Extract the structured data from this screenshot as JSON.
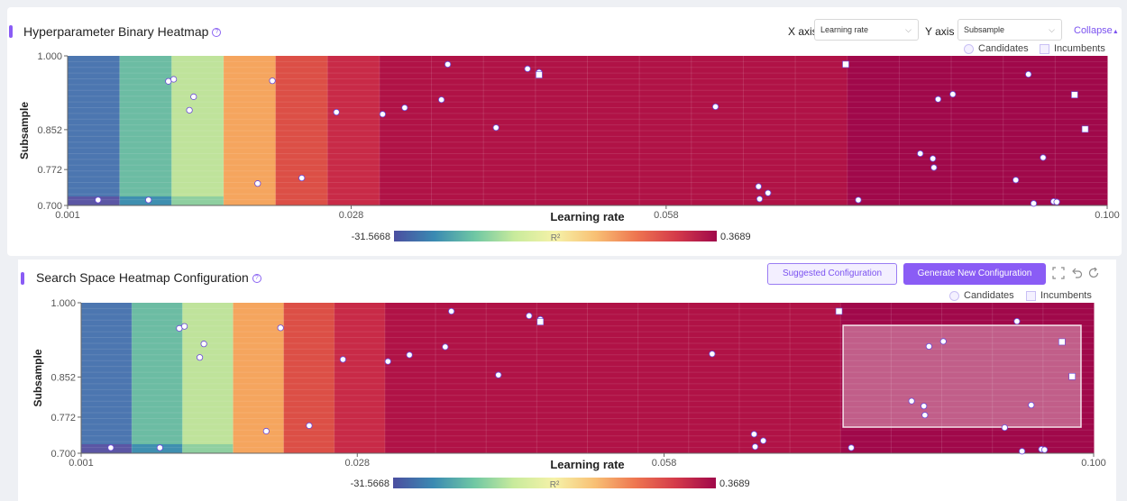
{
  "colors": {
    "accent": "#8a5cf5",
    "bands": [
      "#4c76b0",
      "#6cbca3",
      "#bfe39b",
      "#f5a55e",
      "#dc4f46",
      "#c82a47",
      "#b01246",
      "#a0084a"
    ]
  },
  "panel1": {
    "title": "Hyperparameter Binary Heatmap",
    "x_axis_label": "X axis",
    "x_axis_value": "Learning rate",
    "y_axis_label": "Y axis",
    "y_axis_value": "Subsample",
    "collapse_label": "Collapse",
    "legend": {
      "candidates": "Candidates",
      "incumbents": "Incumbents"
    }
  },
  "panel2": {
    "title": "Search Space Heatmap Configuration",
    "suggested_button": "Suggested Configuration",
    "generate_button": "Generate New Configuration",
    "legend": {
      "candidates": "Candidates",
      "incumbents": "Incumbents"
    }
  },
  "chart_data": [
    {
      "type": "heatmap",
      "title": "Hyperparameter Binary Heatmap",
      "xlabel": "Learning rate",
      "ylabel": "Subsample",
      "xlim": [
        0.001,
        0.1
      ],
      "ylim": [
        0.7,
        1.0
      ],
      "x_ticks": [
        "0.001",
        "0.028",
        "0.058",
        "0.100"
      ],
      "y_ticks": [
        "1.000",
        "0.852",
        "0.772",
        "0.700"
      ],
      "colorbar": {
        "min": "-31.5668",
        "max": "0.3689",
        "label": "R²"
      },
      "candidates": [
        [
          0.0039,
          0.711
        ],
        [
          0.0087,
          0.711
        ],
        [
          0.0106,
          0.949
        ],
        [
          0.0111,
          0.953
        ],
        [
          0.0126,
          0.891
        ],
        [
          0.013,
          0.918
        ],
        [
          0.0191,
          0.744
        ],
        [
          0.0205,
          0.95
        ],
        [
          0.0233,
          0.755
        ],
        [
          0.0266,
          0.887
        ],
        [
          0.031,
          0.883
        ],
        [
          0.0331,
          0.896
        ],
        [
          0.0366,
          0.912
        ],
        [
          0.0372,
          0.983
        ],
        [
          0.0418,
          0.856
        ],
        [
          0.0448,
          0.974
        ],
        [
          0.0459,
          0.967
        ],
        [
          0.0627,
          0.898
        ],
        [
          0.0668,
          0.738
        ],
        [
          0.0669,
          0.713
        ],
        [
          0.0677,
          0.725
        ],
        [
          0.0763,
          0.711
        ],
        [
          0.0822,
          0.804
        ],
        [
          0.0834,
          0.794
        ],
        [
          0.0835,
          0.776
        ],
        [
          0.0839,
          0.913
        ],
        [
          0.0853,
          0.923
        ],
        [
          0.0913,
          0.751
        ],
        [
          0.0925,
          0.963
        ],
        [
          0.0939,
          0.796
        ],
        [
          0.093,
          0.704
        ],
        [
          0.0949,
          0.708
        ],
        [
          0.0952,
          0.707
        ]
      ],
      "incumbents": [
        [
          0.0459,
          0.962
        ],
        [
          0.0751,
          0.983
        ],
        [
          0.0969,
          0.922
        ],
        [
          0.0979,
          0.853
        ]
      ]
    },
    {
      "type": "heatmap",
      "title": "Search Space Heatmap Configuration",
      "xlabel": "Learning rate",
      "ylabel": "Subsample",
      "xlim": [
        0.001,
        0.1
      ],
      "ylim": [
        0.7,
        1.0
      ],
      "x_ticks": [
        "0.001",
        "0.028",
        "0.058",
        "0.100"
      ],
      "y_ticks": [
        "1.000",
        "0.852",
        "0.772",
        "0.700"
      ],
      "colorbar": {
        "min": "-31.5668",
        "max": "0.3689",
        "label": "R²"
      },
      "candidates": [
        [
          0.0039,
          0.711
        ],
        [
          0.0087,
          0.711
        ],
        [
          0.0106,
          0.949
        ],
        [
          0.0111,
          0.953
        ],
        [
          0.0126,
          0.891
        ],
        [
          0.013,
          0.918
        ],
        [
          0.0191,
          0.744
        ],
        [
          0.0205,
          0.95
        ],
        [
          0.0233,
          0.755
        ],
        [
          0.0266,
          0.887
        ],
        [
          0.031,
          0.883
        ],
        [
          0.0331,
          0.896
        ],
        [
          0.0366,
          0.912
        ],
        [
          0.0372,
          0.983
        ],
        [
          0.0418,
          0.856
        ],
        [
          0.0448,
          0.974
        ],
        [
          0.0459,
          0.967
        ],
        [
          0.0627,
          0.898
        ],
        [
          0.0668,
          0.738
        ],
        [
          0.0669,
          0.713
        ],
        [
          0.0677,
          0.725
        ],
        [
          0.0763,
          0.711
        ],
        [
          0.0822,
          0.804
        ],
        [
          0.0834,
          0.794
        ],
        [
          0.0835,
          0.776
        ],
        [
          0.0839,
          0.913
        ],
        [
          0.0853,
          0.923
        ],
        [
          0.0913,
          0.751
        ],
        [
          0.0925,
          0.963
        ],
        [
          0.0939,
          0.796
        ],
        [
          0.093,
          0.704
        ],
        [
          0.0949,
          0.708
        ],
        [
          0.0952,
          0.707
        ]
      ],
      "incumbents": [
        [
          0.0459,
          0.962
        ],
        [
          0.0751,
          0.983
        ],
        [
          0.0969,
          0.922
        ],
        [
          0.0979,
          0.853
        ]
      ],
      "selection": {
        "x": [
          0.0755,
          0.1
        ],
        "y": [
          0.752,
          0.955
        ]
      }
    }
  ]
}
